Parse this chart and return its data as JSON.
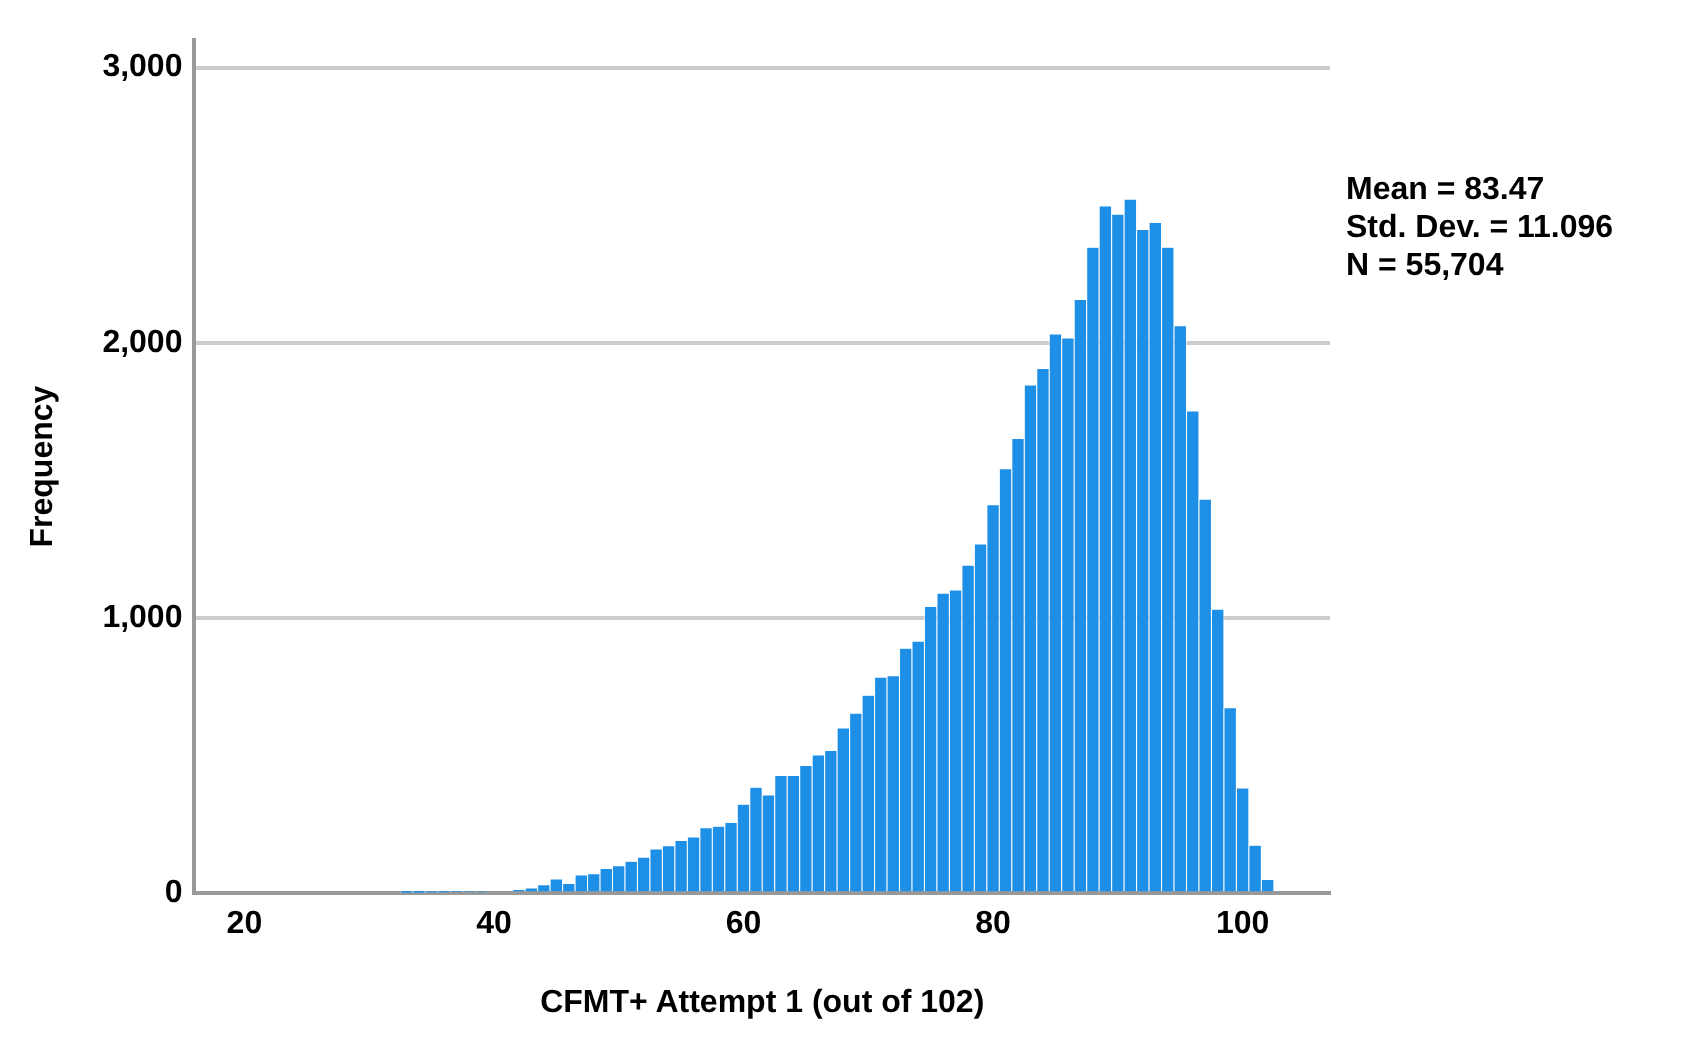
{
  "chart_data": {
    "type": "histogram",
    "xlabel": "CFMT+ Attempt 1 (out of 102)",
    "ylabel": "Frequency",
    "bins": [
      32.5,
      33.5,
      34.5,
      35.5,
      36.5,
      37.5,
      38.5,
      39.5,
      40.5,
      41.5,
      42.5,
      43.5,
      44.5,
      45.5,
      46.5,
      47.5,
      48.5,
      49.5,
      50.5,
      51.5,
      52.5,
      53.5,
      54.5,
      55.5,
      56.5,
      57.5,
      58.5,
      59.5,
      60.5,
      61.5,
      62.5,
      63.5,
      64.5,
      65.5,
      66.5,
      67.5,
      68.5,
      69.5,
      70.5,
      71.5,
      72.5,
      73.5,
      74.5,
      75.5,
      76.5,
      77.5,
      78.5,
      79.5,
      80.5,
      81.5,
      82.5,
      83.5,
      84.5,
      85.5,
      86.5,
      87.5,
      88.5,
      89.5,
      90.5,
      91.5,
      92.5,
      93.5,
      94.5,
      95.5,
      96.5,
      97.5,
      98.5,
      99.5,
      100.5,
      101.5,
      102.5
    ],
    "values": [
      2,
      2,
      3,
      3,
      4,
      5,
      5,
      7,
      7,
      12,
      17,
      29,
      50,
      33,
      64,
      69,
      88,
      98,
      114,
      129,
      159,
      171,
      190,
      202,
      236,
      241,
      255,
      321,
      383,
      355,
      426,
      426,
      462,
      500,
      517,
      598,
      652,
      717,
      783,
      788,
      888,
      914,
      1040,
      1088,
      1100,
      1190,
      1267,
      1410,
      1540,
      1650,
      1845,
      1905,
      2030,
      2015,
      2155,
      2345,
      2495,
      2465,
      2520,
      2410,
      2435,
      2345,
      2060,
      1750,
      1430,
      1030,
      672,
      380,
      172,
      48
    ],
    "color": "#1e8fe6",
    "xlim": [
      16,
      107
    ],
    "xticks": [
      20,
      40,
      60,
      80,
      100
    ],
    "ylim": [
      0,
      3100
    ],
    "yticks": [
      0,
      {
        "value": 1000,
        "label": "1,000"
      },
      {
        "value": 2000,
        "label": "2,000"
      },
      {
        "value": 3000,
        "label": "3,000"
      }
    ],
    "grid": "y",
    "annotations": [
      "Mean = 83.47",
      "Std. Dev. = 11.096",
      "N = 55,704"
    ]
  }
}
